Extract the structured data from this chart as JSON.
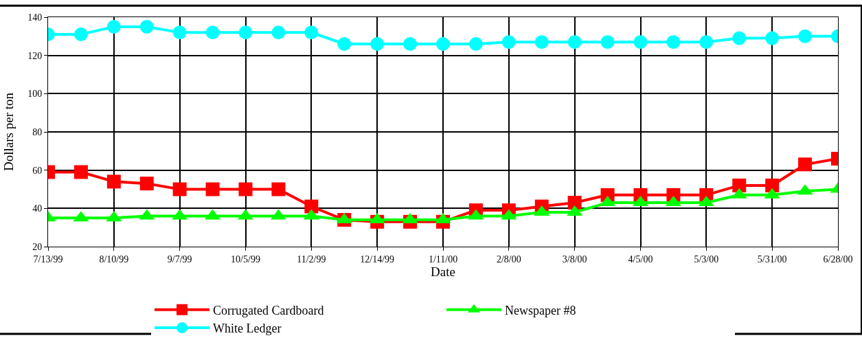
{
  "chart_data": {
    "type": "line",
    "xlabel": "Date",
    "ylabel": "Dollars per ton",
    "categories": [
      "7/13/99",
      null,
      "8/10/99",
      null,
      "9/7/99",
      null,
      "10/5/99",
      null,
      "11/2/99",
      null,
      "12/14/99",
      null,
      "1/11/00",
      null,
      "2/8/00",
      null,
      "3/8/00",
      null,
      "4/5/00",
      null,
      "5/3/00",
      null,
      "5/31/00",
      null,
      "6/28/00"
    ],
    "series": [
      {
        "name": "Corrugated Cardboard",
        "color": "#ff0000",
        "marker": "square",
        "values": [
          59,
          59,
          54,
          53,
          50,
          50,
          50,
          50,
          41,
          34,
          33,
          33,
          33,
          39,
          39,
          41,
          43,
          47,
          47,
          47,
          47,
          52,
          52,
          63,
          66
        ]
      },
      {
        "name": "Newspaper #8",
        "color": "#00ff00",
        "marker": "triangle",
        "values": [
          35,
          35,
          35,
          36,
          36,
          36,
          36,
          36,
          36,
          34,
          34,
          34,
          34,
          36,
          36,
          38,
          38,
          43,
          43,
          43,
          43,
          47,
          47,
          49,
          50
        ]
      },
      {
        "name": "White Ledger",
        "color": "#00ffff",
        "marker": "circle",
        "values": [
          131,
          131,
          135,
          135,
          132,
          132,
          132,
          132,
          132,
          126,
          126,
          126,
          126,
          126,
          127,
          127,
          127,
          127,
          127,
          127,
          127,
          129,
          129,
          130,
          130
        ]
      }
    ],
    "ylim": [
      20,
      140
    ],
    "yticks": [
      20,
      40,
      60,
      80,
      100,
      120,
      140
    ],
    "grid": true,
    "legend": "bottom"
  }
}
